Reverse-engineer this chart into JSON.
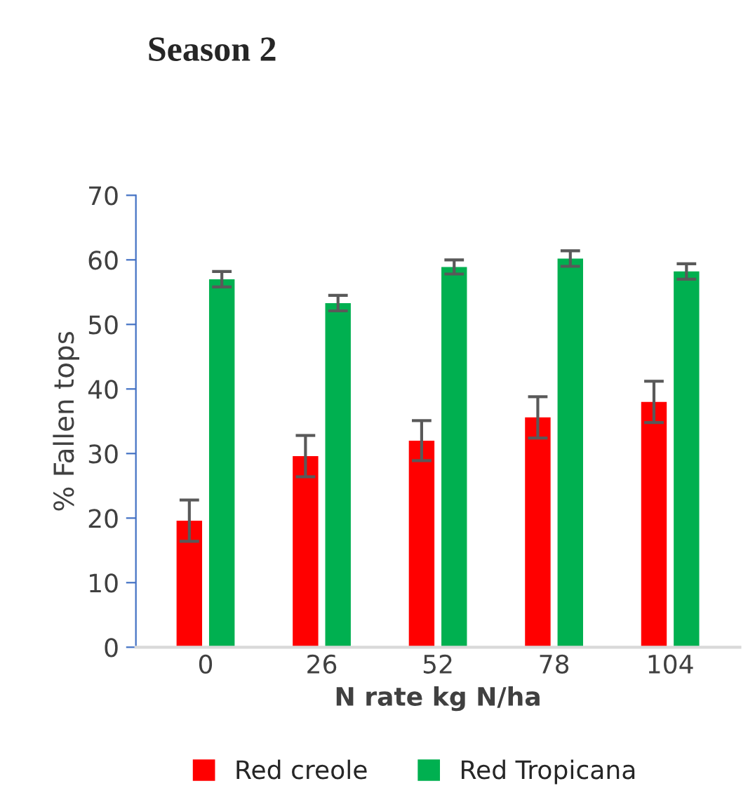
{
  "chart_data": {
    "type": "bar",
    "title": "Season 2",
    "xlabel": "N rate kg N/ha",
    "ylabel": "% Fallen tops",
    "categories": [
      "0",
      "26",
      "52",
      "78",
      "104"
    ],
    "series": [
      {
        "name": "Red creole",
        "color": "#ff0000",
        "values": [
          19.6,
          29.6,
          32.0,
          35.6,
          38.0
        ],
        "errors": [
          3.2,
          3.2,
          3.1,
          3.2,
          3.2
        ]
      },
      {
        "name": "Red Tropicana",
        "color": "#00b050",
        "values": [
          57.0,
          53.3,
          58.9,
          60.2,
          58.2
        ],
        "errors": [
          1.2,
          1.2,
          1.1,
          1.2,
          1.2
        ]
      }
    ],
    "ylim": [
      0,
      70
    ],
    "yticks": [
      0,
      10,
      20,
      30,
      40,
      50,
      60,
      70
    ],
    "grid": false,
    "legend": "bottom"
  }
}
